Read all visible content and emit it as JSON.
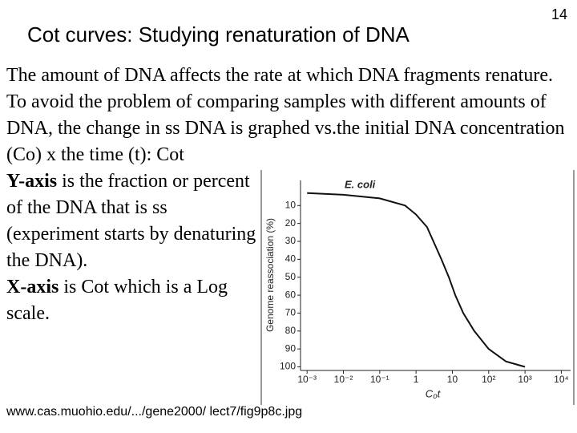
{
  "slide": {
    "title": "Cot curves: Studying renaturation of DNA",
    "page_number": "14",
    "intro": "The amount of DNA affects the rate at which DNA fragments renature. To avoid the problem of comparing samples with different amounts of DNA, the change in ss DNA is graphed vs.the initial DNA concentration (Co) x the time (t):  Cot",
    "y_axis_term": "Y-axis",
    "y_axis_text": "is the fraction or percent of the DNA that is ss (experiment starts by denaturing the DNA).",
    "x_axis_term": "X-axis",
    "x_axis_text": "is Cot which is a Log scale.",
    "source": "www.cas.muohio.edu/.../gene2000/ lect7/fig9p8c.jpg"
  },
  "chart_data": {
    "type": "line",
    "annotation": "E. coli",
    "ylabel": "Genome reassociation (%)",
    "xlabel": "C₀t",
    "x": [
      0.001,
      0.01,
      0.1,
      0.5,
      1,
      2,
      3,
      5,
      8,
      12,
      20,
      40,
      100,
      300,
      1000
    ],
    "series": [
      {
        "name": "E. coli",
        "color": "#111111",
        "values": [
          3,
          4,
          6,
          10,
          15,
          22,
          30,
          40,
          50,
          60,
          70,
          80,
          90,
          97,
          100
        ]
      }
    ],
    "xlog": true,
    "xlim": [
      0.00066,
      18000
    ],
    "xticks": [
      {
        "value": 0.001,
        "label": "10⁻³"
      },
      {
        "value": 0.01,
        "label": "10⁻²"
      },
      {
        "value": 0.1,
        "label": "10⁻¹"
      },
      1,
      10,
      {
        "value": 100,
        "label": "10²"
      },
      {
        "value": 1000,
        "label": "10³"
      },
      {
        "value": 10000,
        "label": "10⁴"
      }
    ],
    "ylim": [
      -4,
      102
    ],
    "y_inverted": true,
    "yticks": [
      10,
      20,
      30,
      40,
      50,
      60,
      70,
      80,
      90,
      100
    ]
  }
}
